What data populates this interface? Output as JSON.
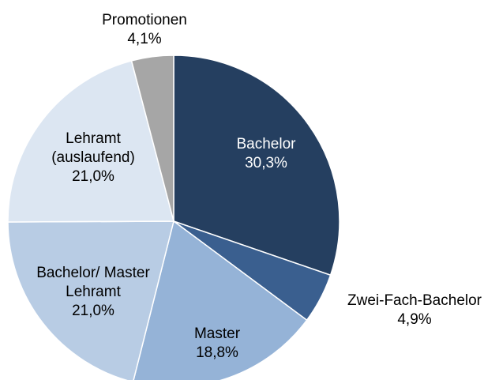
{
  "chart_data": {
    "type": "pie",
    "categories": [
      "Bachelor",
      "Zwei-Fach-Bachelor",
      "Master",
      "Bachelor/ Master Lehramt",
      "Lehramt (auslaufend)",
      "Promotionen"
    ],
    "values": [
      30.3,
      4.9,
      18.8,
      21.0,
      21.0,
      4.1
    ],
    "value_labels": [
      "30,3%",
      "4,9%",
      "18,8%",
      "21,0%",
      "21,0%",
      "4,1%"
    ],
    "colors": [
      "#253f60",
      "#3a5f8f",
      "#95b3d7",
      "#b8cce4",
      "#dce6f2",
      "#a6a6a6"
    ]
  }
}
